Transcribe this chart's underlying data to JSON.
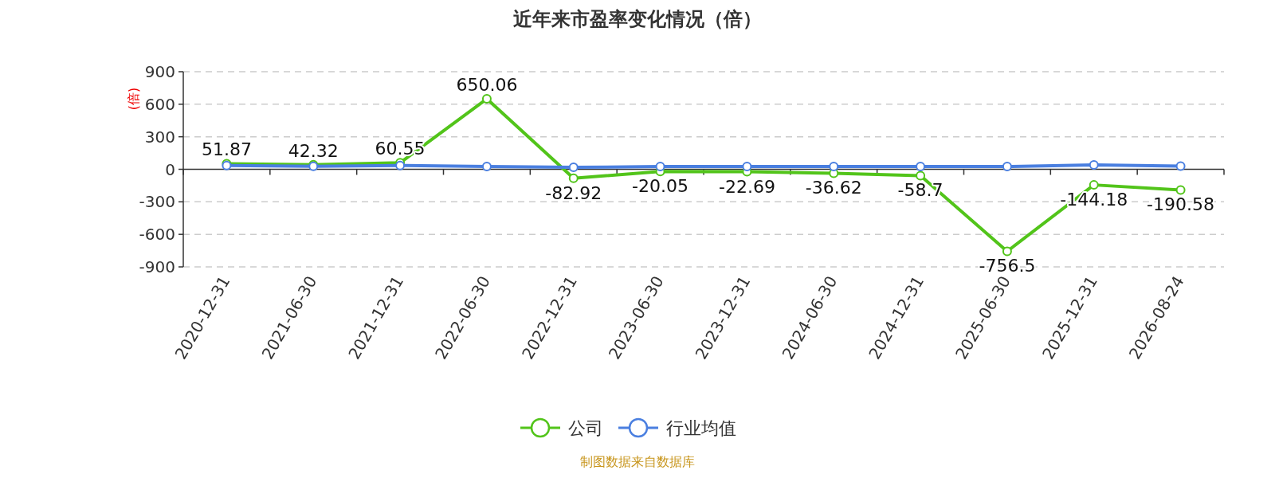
{
  "chart_data": {
    "type": "line",
    "title": "近年来市盈率变化情况（倍）",
    "ylabel": "(倍)",
    "categories": [
      "2020-12-31",
      "2021-06-30",
      "2021-12-31",
      "2022-06-30",
      "2022-12-31",
      "2023-06-30",
      "2023-12-31",
      "2024-06-30",
      "2024-12-31",
      "2025-06-30",
      "2025-12-31",
      "2026-08-24"
    ],
    "series": [
      {
        "name": "公司",
        "color": "#52c41a",
        "values": [
          51.87,
          42.32,
          60.55,
          650.06,
          -82.92,
          -20.05,
          -22.69,
          -36.62,
          -58.7,
          -756.5,
          -144.18,
          -190.58
        ],
        "value_labels": [
          "51.87",
          "42.32",
          "60.55",
          "650.06",
          "-82.92",
          "-20.05",
          "-22.69",
          "-36.62",
          "-58.7",
          "-756.5",
          "-144.18",
          "-190.58"
        ]
      },
      {
        "name": "行业均值",
        "color": "#4a7fe0",
        "values": [
          35,
          28,
          35,
          25,
          18,
          25,
          25,
          25,
          25,
          25,
          40,
          30
        ]
      }
    ],
    "ylim": [
      -900,
      900
    ],
    "yticks": [
      -900,
      -600,
      -300,
      0,
      300,
      600,
      900
    ],
    "grid": "y",
    "legend": "bottom",
    "marker": "circle",
    "line_style": "solid",
    "annotations": [
      "制图数据来自数据库"
    ]
  }
}
